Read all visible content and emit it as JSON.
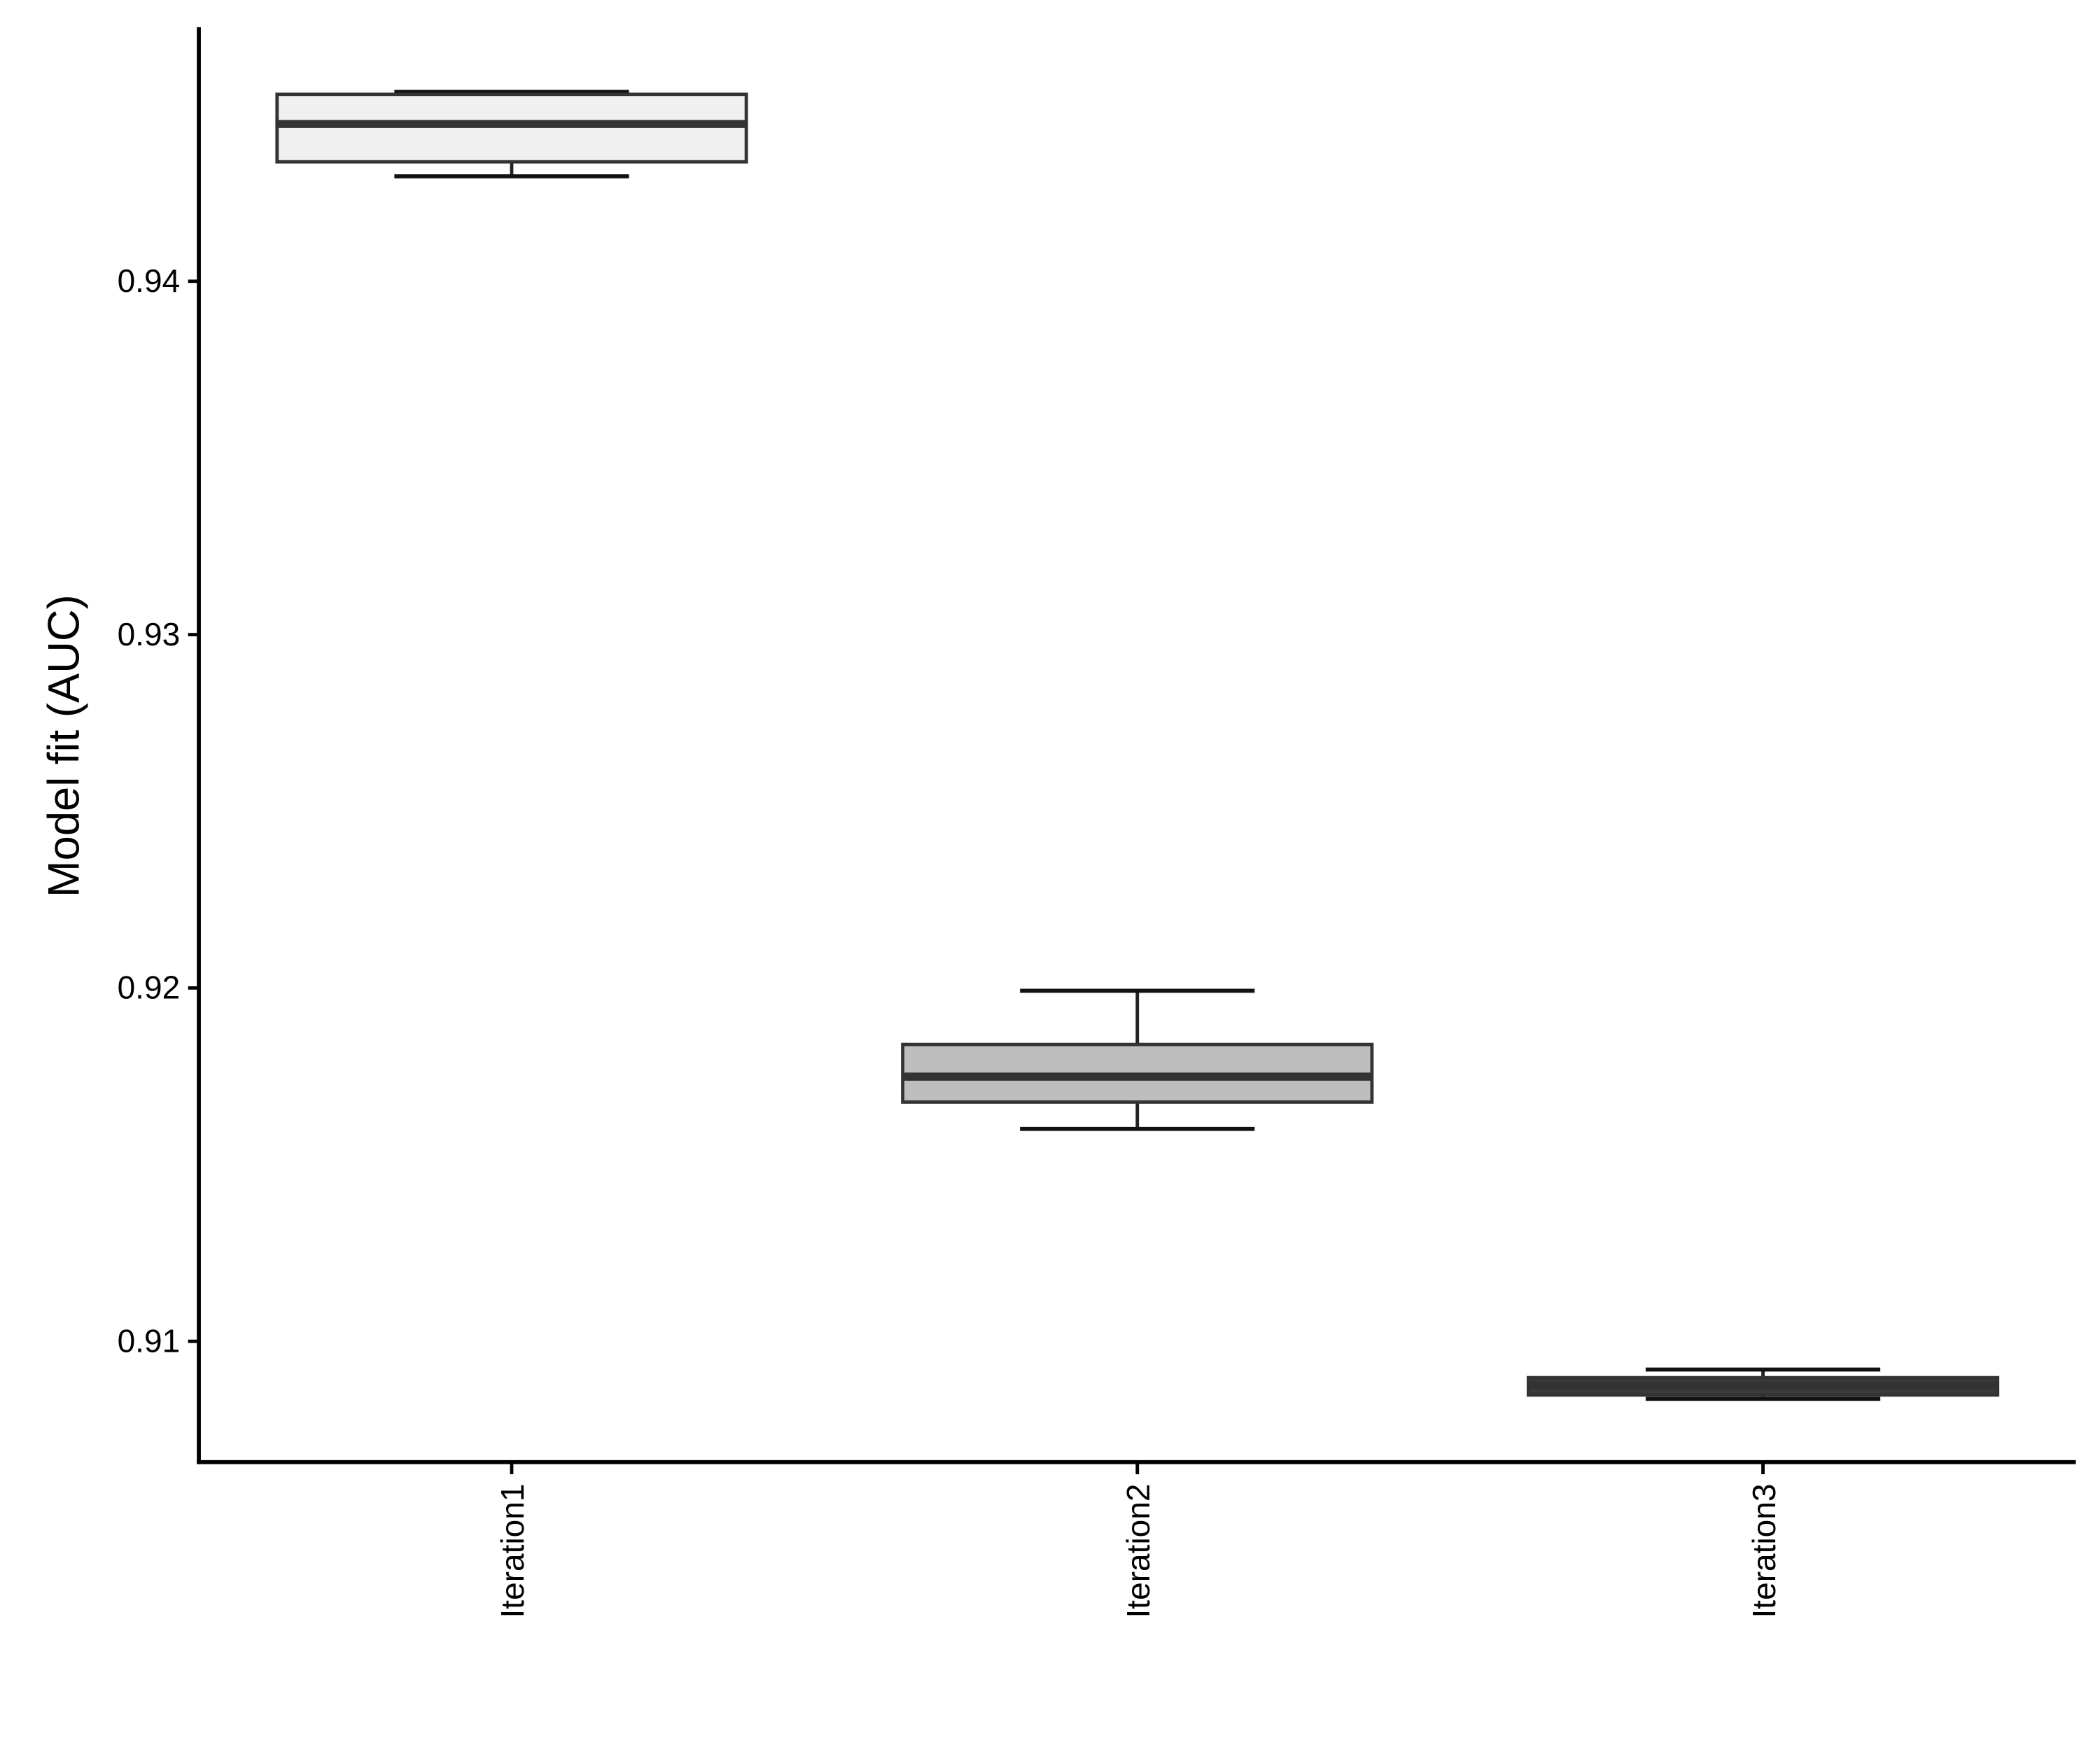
{
  "chart_data": {
    "type": "box",
    "y_label": "Model fit (AUC)",
    "categories": [
      "Iteration1",
      "Iteration2",
      "Iteration3"
    ],
    "min": [
      0.94297,
      0.91601,
      0.90837
    ],
    "q1": [
      0.94338,
      0.91677,
      0.90848
    ],
    "median": [
      0.94445,
      0.91749,
      0.90875
    ],
    "q3": [
      0.94529,
      0.9184,
      0.90897
    ],
    "max": [
      0.94536,
      0.91992,
      0.9092
    ],
    "colors": [
      "#f0f0f0",
      "#bebebe",
      "#3a3a3a"
    ],
    "ylim": [
      0.90658,
      0.94719
    ],
    "yticks": [
      0.91,
      0.92,
      0.93,
      0.94
    ],
    "grid": false
  }
}
